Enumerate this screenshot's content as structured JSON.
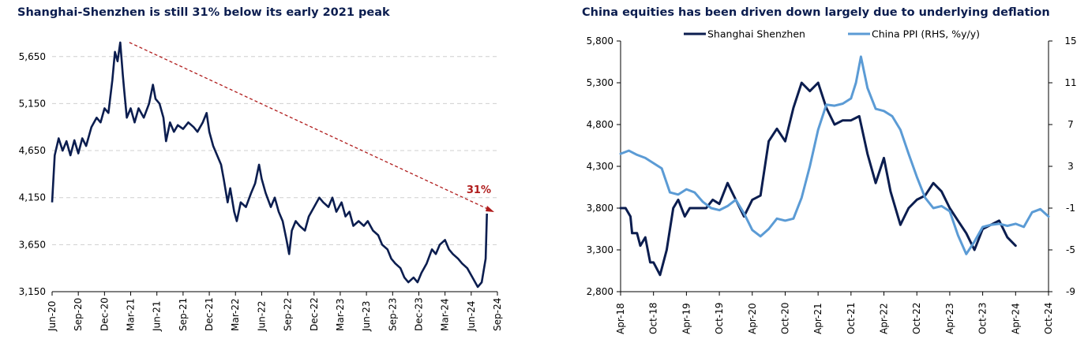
{
  "chart_data": [
    {
      "type": "line",
      "title": "Shanghai-Shenzhen is still 31% below its early 2021 peak",
      "x_ticks": [
        "Jun-20",
        "Sep-20",
        "Dec-20",
        "Mar-21",
        "Jun-21",
        "Sep-21",
        "Dec-21",
        "Mar-22",
        "Jun-22",
        "Sep-22",
        "Dec-22",
        "Mar-23",
        "Jun-23",
        "Sep-23",
        "Dec-23",
        "Mar-24",
        "Jun-24",
        "Sep-24"
      ],
      "y_ticks": [
        3150,
        3650,
        4150,
        4650,
        5150,
        5650
      ],
      "y_tick_labels": [
        "3,150",
        "3,650",
        "4,150",
        "4,650",
        "5,150",
        "5,650"
      ],
      "ylim": [
        3150,
        6000
      ],
      "series": [
        {
          "name": "Shanghai Shenzhen",
          "color": "#0b1d4f",
          "points": [
            [
              0,
              4100
            ],
            [
              0.1,
              4600
            ],
            [
              0.25,
              4780
            ],
            [
              0.4,
              4650
            ],
            [
              0.55,
              4750
            ],
            [
              0.7,
              4600
            ],
            [
              0.85,
              4760
            ],
            [
              1.0,
              4620
            ],
            [
              1.15,
              4780
            ],
            [
              1.3,
              4700
            ],
            [
              1.5,
              4900
            ],
            [
              1.7,
              5000
            ],
            [
              1.85,
              4950
            ],
            [
              2.0,
              5100
            ],
            [
              2.15,
              5050
            ],
            [
              2.3,
              5400
            ],
            [
              2.4,
              5700
            ],
            [
              2.5,
              5600
            ],
            [
              2.6,
              5800
            ],
            [
              2.7,
              5450
            ],
            [
              2.75,
              5300
            ],
            [
              2.85,
              5000
            ],
            [
              3.0,
              5100
            ],
            [
              3.15,
              4950
            ],
            [
              3.3,
              5100
            ],
            [
              3.5,
              5000
            ],
            [
              3.7,
              5150
            ],
            [
              3.85,
              5350
            ],
            [
              3.95,
              5200
            ],
            [
              4.1,
              5150
            ],
            [
              4.25,
              5000
            ],
            [
              4.35,
              4750
            ],
            [
              4.5,
              4950
            ],
            [
              4.65,
              4850
            ],
            [
              4.8,
              4920
            ],
            [
              5.0,
              4880
            ],
            [
              5.2,
              4950
            ],
            [
              5.4,
              4900
            ],
            [
              5.55,
              4850
            ],
            [
              5.75,
              4950
            ],
            [
              5.9,
              5050
            ],
            [
              6.0,
              4850
            ],
            [
              6.15,
              4700
            ],
            [
              6.3,
              4600
            ],
            [
              6.45,
              4500
            ],
            [
              6.55,
              4350
            ],
            [
              6.7,
              4100
            ],
            [
              6.8,
              4250
            ],
            [
              6.95,
              4000
            ],
            [
              7.05,
              3900
            ],
            [
              7.2,
              4100
            ],
            [
              7.4,
              4050
            ],
            [
              7.6,
              4200
            ],
            [
              7.75,
              4300
            ],
            [
              7.9,
              4500
            ],
            [
              8.0,
              4350
            ],
            [
              8.15,
              4200
            ],
            [
              8.35,
              4050
            ],
            [
              8.5,
              4150
            ],
            [
              8.65,
              4000
            ],
            [
              8.8,
              3900
            ],
            [
              8.95,
              3700
            ],
            [
              9.05,
              3550
            ],
            [
              9.15,
              3800
            ],
            [
              9.3,
              3900
            ],
            [
              9.45,
              3850
            ],
            [
              9.65,
              3800
            ],
            [
              9.8,
              3950
            ],
            [
              10.0,
              4050
            ],
            [
              10.2,
              4150
            ],
            [
              10.35,
              4100
            ],
            [
              10.55,
              4050
            ],
            [
              10.7,
              4150
            ],
            [
              10.85,
              4000
            ],
            [
              11.05,
              4100
            ],
            [
              11.2,
              3950
            ],
            [
              11.35,
              4000
            ],
            [
              11.5,
              3850
            ],
            [
              11.7,
              3900
            ],
            [
              11.9,
              3850
            ],
            [
              12.05,
              3900
            ],
            [
              12.25,
              3800
            ],
            [
              12.45,
              3750
            ],
            [
              12.6,
              3650
            ],
            [
              12.8,
              3600
            ],
            [
              12.95,
              3500
            ],
            [
              13.1,
              3450
            ],
            [
              13.3,
              3400
            ],
            [
              13.45,
              3300
            ],
            [
              13.6,
              3250
            ],
            [
              13.8,
              3300
            ],
            [
              13.95,
              3250
            ],
            [
              14.1,
              3350
            ],
            [
              14.3,
              3450
            ],
            [
              14.5,
              3600
            ],
            [
              14.65,
              3550
            ],
            [
              14.8,
              3650
            ],
            [
              15.0,
              3700
            ],
            [
              15.15,
              3600
            ],
            [
              15.3,
              3550
            ],
            [
              15.5,
              3500
            ],
            [
              15.65,
              3450
            ],
            [
              15.85,
              3400
            ],
            [
              16.05,
              3300
            ],
            [
              16.25,
              3200
            ],
            [
              16.4,
              3250
            ],
            [
              16.55,
              3500
            ],
            [
              16.6,
              3980
            ]
          ]
        }
      ],
      "trend_line": {
        "from": [
          2.95,
          5800
        ],
        "to": [
          17.0,
          3980
        ]
      },
      "annotation": "31%"
    },
    {
      "type": "line",
      "title": "China equities has been driven down largely due to underlying deflation",
      "x_ticks": [
        "Apr-18",
        "Oct-18",
        "Apr-19",
        "Oct-19",
        "Apr-20",
        "Oct-20",
        "Apr-21",
        "Oct-21",
        "Apr-22",
        "Oct-22",
        "Apr-23",
        "Oct-23",
        "Apr-24",
        "Oct-24"
      ],
      "y_left_ticks": [
        2800,
        3300,
        3800,
        4300,
        4800,
        5300,
        5800
      ],
      "y_left_tick_labels": [
        "2,800",
        "3,300",
        "3,800",
        "4,300",
        "4,800",
        "5,300",
        "5,800"
      ],
      "y_right_ticks": [
        -9,
        -5,
        -1,
        3,
        7,
        11,
        15
      ],
      "y_left_lim": [
        2800,
        5800
      ],
      "y_right_lim": [
        -9,
        15
      ],
      "series": [
        {
          "name": "Shanghai Shenzhen",
          "axis": "left",
          "color": "#0b1d4f",
          "points": [
            [
              0,
              3800
            ],
            [
              0.15,
              3800
            ],
            [
              0.3,
              3700
            ],
            [
              0.35,
              3500
            ],
            [
              0.5,
              3500
            ],
            [
              0.6,
              3350
            ],
            [
              0.75,
              3450
            ],
            [
              0.9,
              3150
            ],
            [
              1.0,
              3150
            ],
            [
              1.2,
              3000
            ],
            [
              1.4,
              3300
            ],
            [
              1.6,
              3800
            ],
            [
              1.75,
              3900
            ],
            [
              1.95,
              3700
            ],
            [
              2.1,
              3800
            ],
            [
              2.35,
              3800
            ],
            [
              2.6,
              3800
            ],
            [
              2.8,
              3900
            ],
            [
              3.0,
              3850
            ],
            [
              3.25,
              4100
            ],
            [
              3.5,
              3900
            ],
            [
              3.75,
              3700
            ],
            [
              4.0,
              3900
            ],
            [
              4.25,
              3950
            ],
            [
              4.5,
              4600
            ],
            [
              4.75,
              4750
            ],
            [
              5.0,
              4600
            ],
            [
              5.25,
              5000
            ],
            [
              5.5,
              5300
            ],
            [
              5.75,
              5200
            ],
            [
              6.0,
              5300
            ],
            [
              6.25,
              5000
            ],
            [
              6.5,
              4800
            ],
            [
              6.75,
              4850
            ],
            [
              7.0,
              4850
            ],
            [
              7.25,
              4900
            ],
            [
              7.5,
              4450
            ],
            [
              7.75,
              4100
            ],
            [
              8.0,
              4400
            ],
            [
              8.2,
              4000
            ],
            [
              8.5,
              3600
            ],
            [
              8.75,
              3800
            ],
            [
              9.0,
              3900
            ],
            [
              9.25,
              3950
            ],
            [
              9.5,
              4100
            ],
            [
              9.75,
              4000
            ],
            [
              10.0,
              3800
            ],
            [
              10.25,
              3650
            ],
            [
              10.5,
              3500
            ],
            [
              10.75,
              3300
            ],
            [
              11.0,
              3550
            ],
            [
              11.25,
              3600
            ],
            [
              11.5,
              3650
            ],
            [
              11.75,
              3450
            ],
            [
              12.0,
              3350
            ]
          ]
        },
        {
          "name": "China PPI (RHS, %y/y)",
          "axis": "right",
          "color": "#5b9bd5",
          "points": [
            [
              0,
              4.2
            ],
            [
              0.25,
              4.5
            ],
            [
              0.5,
              4.1
            ],
            [
              0.75,
              3.8
            ],
            [
              1.0,
              3.3
            ],
            [
              1.25,
              2.8
            ],
            [
              1.5,
              0.5
            ],
            [
              1.75,
              0.3
            ],
            [
              2.0,
              0.8
            ],
            [
              2.25,
              0.5
            ],
            [
              2.5,
              -0.4
            ],
            [
              2.75,
              -1.0
            ],
            [
              3.0,
              -1.2
            ],
            [
              3.25,
              -0.8
            ],
            [
              3.5,
              -0.2
            ],
            [
              3.75,
              -1.5
            ],
            [
              4.0,
              -3.1
            ],
            [
              4.25,
              -3.7
            ],
            [
              4.5,
              -3.0
            ],
            [
              4.75,
              -2.0
            ],
            [
              5.0,
              -2.2
            ],
            [
              5.25,
              -2.0
            ],
            [
              5.5,
              0.0
            ],
            [
              5.75,
              3.0
            ],
            [
              6.0,
              6.5
            ],
            [
              6.25,
              8.9
            ],
            [
              6.5,
              8.8
            ],
            [
              6.75,
              9.0
            ],
            [
              7.0,
              9.5
            ],
            [
              7.15,
              11.0
            ],
            [
              7.3,
              13.5
            ],
            [
              7.5,
              10.5
            ],
            [
              7.75,
              8.5
            ],
            [
              8.0,
              8.3
            ],
            [
              8.25,
              7.8
            ],
            [
              8.5,
              6.5
            ],
            [
              8.75,
              4.2
            ],
            [
              9.0,
              2.0
            ],
            [
              9.25,
              0.0
            ],
            [
              9.5,
              -1.0
            ],
            [
              9.75,
              -0.8
            ],
            [
              10.0,
              -1.3
            ],
            [
              10.25,
              -3.6
            ],
            [
              10.5,
              -5.4
            ],
            [
              10.75,
              -4.2
            ],
            [
              11.0,
              -2.8
            ],
            [
              11.25,
              -2.6
            ],
            [
              11.5,
              -2.5
            ],
            [
              11.75,
              -2.7
            ],
            [
              12.0,
              -2.5
            ],
            [
              12.25,
              -2.8
            ],
            [
              12.5,
              -1.4
            ],
            [
              12.75,
              -1.1
            ],
            [
              13.0,
              -1.8
            ]
          ]
        }
      ],
      "legend": [
        "Shanghai Shenzhen",
        "China PPI (RHS, %y/y)"
      ]
    }
  ]
}
